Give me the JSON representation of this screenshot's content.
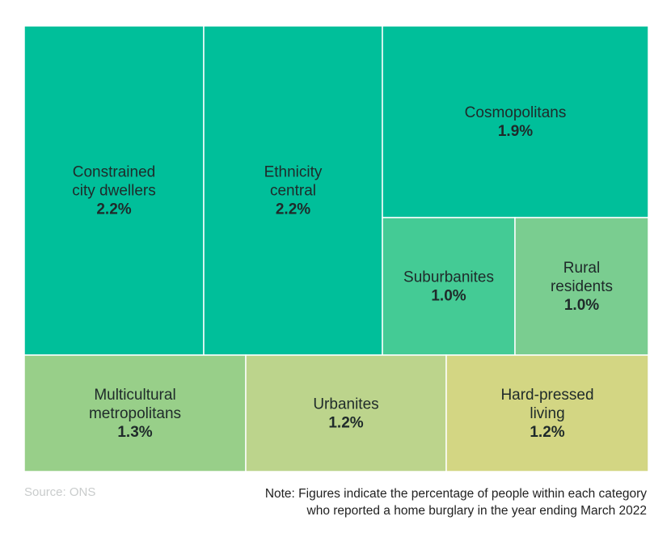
{
  "chart_data": {
    "type": "treemap",
    "unit": "%",
    "items": [
      {
        "label_lines": [
          "Constrained",
          "city dwellers"
        ],
        "value": 2.2,
        "display": "2.2%",
        "color": "#00bf9a"
      },
      {
        "label_lines": [
          "Ethnicity",
          "central"
        ],
        "value": 2.2,
        "display": "2.2%",
        "color": "#00bf9a"
      },
      {
        "label_lines": [
          "Cosmopolitans"
        ],
        "value": 1.9,
        "display": "1.9%",
        "color": "#00bf9a"
      },
      {
        "label_lines": [
          "Suburbanites"
        ],
        "value": 1.0,
        "display": "1.0%",
        "color": "#44cb95"
      },
      {
        "label_lines": [
          "Rural",
          "residents"
        ],
        "value": 1.0,
        "display": "1.0%",
        "color": "#7acd90"
      },
      {
        "label_lines": [
          "Multicultural",
          "metropolitans"
        ],
        "value": 1.3,
        "display": "1.3%",
        "color": "#98cf89"
      },
      {
        "label_lines": [
          "Urbanites"
        ],
        "value": 1.2,
        "display": "1.2%",
        "color": "#bcd48c"
      },
      {
        "label_lines": [
          "Hard-pressed",
          "living"
        ],
        "value": 1.2,
        "display": "1.2%",
        "color": "#d3d683"
      }
    ]
  },
  "footer": {
    "source": "Source: ONS",
    "note_line1": "Note: Figures indicate the percentage of people within each category",
    "note_line2": "who reported a home burglary in the year ending March 2022"
  }
}
